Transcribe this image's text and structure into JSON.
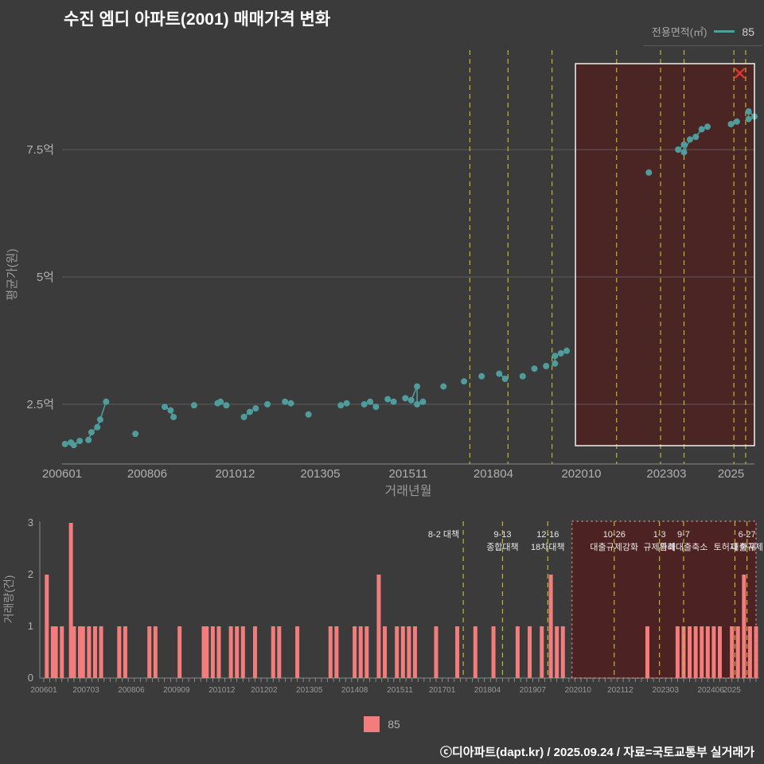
{
  "page": {
    "title": "수진 엠디 아파트(2001) 매매가격 변화",
    "footer": "ⓒ디아파트(dapt.kr) / 2025.09.24 / 자료=국토교통부 실거래가"
  },
  "legend_top": {
    "label": "전용면적(㎡)",
    "value": "85"
  },
  "legend_bottom": {
    "value": "85"
  },
  "colors": {
    "background": "#3b3b3b",
    "point": "#4e9d9c",
    "bar": "#f37d7d",
    "policy_line": "#b9b92c",
    "grid": "#5c5c5c",
    "axis_text": "#b0b0b0",
    "highlight_fill": "#521d1d",
    "highlight_border_top": "#f0f0f0",
    "highlight_border_bottom": "#d98080",
    "cancel_x": "#e03434"
  },
  "policies": [
    {
      "ym": "201708",
      "line1": "8-2 대책",
      "line2": "",
      "align": "end"
    },
    {
      "ym": "201809",
      "line1": "9-13",
      "line2": "종합대책"
    },
    {
      "ym": "201912",
      "line1": "12-16",
      "line2": "18차대책"
    },
    {
      "ym": "202110",
      "line1": "10-26",
      "line2": "대출규제강화"
    },
    {
      "ym": "202301",
      "line1": "1-3",
      "line2": "규제완화"
    },
    {
      "ym": "202309",
      "line1": "9-7",
      "line2": "특례대출축소"
    },
    {
      "ym": "202502",
      "line1": "",
      "line2": "토허제 해제"
    },
    {
      "ym": "202506",
      "line1": "6-27",
      "line2": "대출규제"
    }
  ],
  "chart_data": [
    {
      "type": "scatter",
      "title": "수진 엠디 아파트(2001) 매매가격 변화",
      "xlabel": "거래년월",
      "ylabel": "평균가(원)",
      "ylim": [
        1.3,
        9.5
      ],
      "y_ticks": [
        {
          "v": 2.5,
          "label": "2.5억"
        },
        {
          "v": 5,
          "label": "5억"
        },
        {
          "v": 7.5,
          "label": "7.5억"
        }
      ],
      "x_ticks": [
        "200601",
        "200806",
        "201012",
        "201305",
        "201511",
        "201804",
        "202010",
        "202303",
        "2025"
      ],
      "highlight_region": {
        "start": "202008",
        "end": "202509"
      },
      "cancelled_point": {
        "ym": "202504",
        "price": 9.0
      },
      "series": [
        {
          "name": "85",
          "points": [
            [
              "200602",
              1.72
            ],
            [
              "200604",
              1.75
            ],
            [
              "200605",
              1.7
            ],
            [
              "200607",
              1.78
            ],
            [
              "200610",
              1.8
            ],
            [
              "200611",
              1.95
            ],
            [
              "200701",
              2.05
            ],
            [
              "200702",
              2.2
            ],
            [
              "200704",
              2.55
            ],
            [
              "200802",
              1.92
            ],
            [
              "200812",
              2.45
            ],
            [
              "200902",
              2.38
            ],
            [
              "200903",
              2.25
            ],
            [
              "200910",
              2.48
            ],
            [
              "201006",
              2.52
            ],
            [
              "201007",
              2.55
            ],
            [
              "201009",
              2.48
            ],
            [
              "201103",
              2.25
            ],
            [
              "201105",
              2.35
            ],
            [
              "201107",
              2.42
            ],
            [
              "201111",
              2.5
            ],
            [
              "201205",
              2.55
            ],
            [
              "201207",
              2.52
            ],
            [
              "201301",
              2.3
            ],
            [
              "201312",
              2.48
            ],
            [
              "201402",
              2.52
            ],
            [
              "201408",
              2.5
            ],
            [
              "201410",
              2.55
            ],
            [
              "201412",
              2.45
            ],
            [
              "201504",
              2.6
            ],
            [
              "201506",
              2.55
            ],
            [
              "201510",
              2.62
            ],
            [
              "201512",
              2.58
            ],
            [
              "201602",
              2.85
            ],
            [
              "201602",
              2.5
            ],
            [
              "201604",
              2.55
            ],
            [
              "201611",
              2.85
            ],
            [
              "201706",
              2.95
            ],
            [
              "201712",
              3.05
            ],
            [
              "201806",
              3.1
            ],
            [
              "201808",
              3.0
            ],
            [
              "201902",
              3.05
            ],
            [
              "201906",
              3.2
            ],
            [
              "201910",
              3.25
            ],
            [
              "202001",
              3.3
            ],
            [
              "202001",
              3.45
            ],
            [
              "202003",
              3.5
            ],
            [
              "202005",
              3.55
            ],
            [
              "202209",
              7.05
            ],
            [
              "202307",
              7.5
            ],
            [
              "202309",
              7.6
            ],
            [
              "202309",
              7.45
            ],
            [
              "202311",
              7.7
            ],
            [
              "202401",
              7.75
            ],
            [
              "202403",
              7.9
            ],
            [
              "202405",
              7.95
            ],
            [
              "202501",
              8.0
            ],
            [
              "202503",
              8.05
            ],
            [
              "202507",
              8.1
            ],
            [
              "202507",
              8.25
            ],
            [
              "202509",
              8.15
            ]
          ]
        }
      ]
    },
    {
      "type": "bar",
      "ylabel": "거래량(건)",
      "y_ticks": [
        0,
        1,
        2,
        3
      ],
      "x_ticks": [
        "200601",
        "200703",
        "200806",
        "200909",
        "201012",
        "201202",
        "201305",
        "201408",
        "201511",
        "201701",
        "201804",
        "201907",
        "202010",
        "202112",
        "202303",
        "202406",
        "2025"
      ],
      "highlight_region": {
        "start": "202008",
        "end": "202509"
      },
      "series": [
        {
          "name": "85",
          "bars": [
            [
              "200602",
              2
            ],
            [
              "200604",
              1
            ],
            [
              "200605",
              1
            ],
            [
              "200607",
              1
            ],
            [
              "200610",
              3
            ],
            [
              "200611",
              1
            ],
            [
              "200701",
              1
            ],
            [
              "200702",
              1
            ],
            [
              "200704",
              1
            ],
            [
              "200706",
              1
            ],
            [
              "200708",
              1
            ],
            [
              "200802",
              1
            ],
            [
              "200804",
              1
            ],
            [
              "200812",
              1
            ],
            [
              "200902",
              1
            ],
            [
              "200910",
              1
            ],
            [
              "201006",
              1
            ],
            [
              "201007",
              1
            ],
            [
              "201009",
              1
            ],
            [
              "201011",
              1
            ],
            [
              "201103",
              1
            ],
            [
              "201105",
              1
            ],
            [
              "201107",
              1
            ],
            [
              "201111",
              1
            ],
            [
              "201205",
              1
            ],
            [
              "201207",
              1
            ],
            [
              "201301",
              1
            ],
            [
              "201312",
              1
            ],
            [
              "201402",
              1
            ],
            [
              "201408",
              1
            ],
            [
              "201410",
              1
            ],
            [
              "201412",
              1
            ],
            [
              "201504",
              2
            ],
            [
              "201506",
              1
            ],
            [
              "201510",
              1
            ],
            [
              "201512",
              1
            ],
            [
              "201602",
              1
            ],
            [
              "201604",
              1
            ],
            [
              "201611",
              1
            ],
            [
              "201706",
              1
            ],
            [
              "201712",
              1
            ],
            [
              "201806",
              1
            ],
            [
              "201902",
              1
            ],
            [
              "201906",
              1
            ],
            [
              "201910",
              1
            ],
            [
              "202001",
              2
            ],
            [
              "202003",
              1
            ],
            [
              "202005",
              1
            ],
            [
              "202209",
              1
            ],
            [
              "202307",
              1
            ],
            [
              "202309",
              1
            ],
            [
              "202311",
              1
            ],
            [
              "202401",
              1
            ],
            [
              "202403",
              1
            ],
            [
              "202405",
              1
            ],
            [
              "202407",
              1
            ],
            [
              "202409",
              1
            ],
            [
              "202501",
              1
            ],
            [
              "202503",
              1
            ],
            [
              "202505",
              2
            ],
            [
              "202507",
              1
            ],
            [
              "202509",
              1
            ]
          ]
        }
      ]
    }
  ]
}
